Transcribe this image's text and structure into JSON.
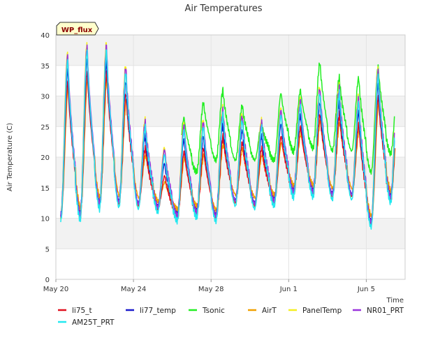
{
  "chart_data": {
    "type": "line",
    "title": "Air Temperatures",
    "xlabel": "Time",
    "ylabel": "Air Temperature (C)",
    "badge": "WP_flux",
    "ylim": [
      0,
      40
    ],
    "yticks": [
      0,
      5,
      10,
      15,
      20,
      25,
      30,
      35,
      40
    ],
    "xlim": [
      "2016-05-20",
      "2016-06-07"
    ],
    "xticks": [
      {
        "label": "May 20",
        "day": 0
      },
      {
        "label": "May 24",
        "day": 4
      },
      {
        "label": "May 28",
        "day": 8
      },
      {
        "label": "Jun 1",
        "day": 12
      },
      {
        "label": "Jun 5",
        "day": 16
      }
    ],
    "grid": true,
    "banded_background": true,
    "legend_position": "bottom",
    "colors": {
      "li75_t": "#e0101f",
      "li77_temp": "#1a1acc",
      "Tsonic": "#22ee22",
      "AirT": "#f0a000",
      "PanelTemp": "#f5ee20",
      "NR01_PRT": "#9a33dd",
      "AM25T_PRT": "#22e8f0"
    },
    "daily_min_max": {
      "dates": [
        "May 20",
        "May 21",
        "May 22",
        "May 23",
        "May 24",
        "May 25",
        "May 26",
        "May 27",
        "May 28",
        "May 29",
        "May 30",
        "May 31",
        "Jun 1",
        "Jun 2",
        "Jun 3",
        "Jun 4",
        "Jun 5",
        "Jun 6"
      ],
      "AM25T_PRT_min": [
        9.5,
        9.8,
        11.5,
        11.8,
        11.5,
        11,
        9.5,
        10,
        9.5,
        12,
        11.5,
        12,
        13.5,
        13.5,
        13,
        13,
        8.5,
        12.5
      ],
      "AM25T_PRT_max": [
        36,
        37.5,
        37.5,
        34,
        25,
        20.5,
        24.5,
        25,
        27,
        26,
        25,
        27,
        28.5,
        30.5,
        30.5,
        29,
        33.5,
        31
      ],
      "Tsonic_min": [
        null,
        null,
        null,
        null,
        null,
        null,
        17.5,
        17.5,
        19.5,
        19.5,
        19.5,
        19.5,
        21,
        21.5,
        21,
        21,
        17.5,
        20.5
      ],
      "Tsonic_max": [
        null,
        null,
        null,
        null,
        null,
        null,
        26.5,
        29,
        31,
        28.5,
        25.5,
        30.5,
        31,
        35.5,
        33,
        33,
        35,
        31
      ]
    },
    "series": [
      {
        "name": "li75_t"
      },
      {
        "name": "li77_temp"
      },
      {
        "name": "Tsonic"
      },
      {
        "name": "AirT"
      },
      {
        "name": "PanelTemp"
      },
      {
        "name": "NR01_PRT"
      },
      {
        "name": "AM25T_PRT"
      }
    ]
  }
}
